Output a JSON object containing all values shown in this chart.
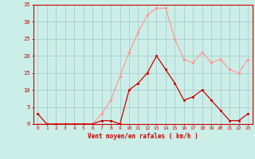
{
  "x": [
    0,
    1,
    2,
    3,
    4,
    5,
    6,
    7,
    8,
    9,
    10,
    11,
    12,
    13,
    14,
    15,
    16,
    17,
    18,
    19,
    20,
    21,
    22,
    23
  ],
  "wind_avg": [
    3,
    0,
    0,
    0,
    0,
    0,
    0,
    1,
    1,
    0,
    10,
    12,
    15,
    20,
    16,
    12,
    7,
    8,
    10,
    7,
    4,
    1,
    1,
    3
  ],
  "wind_gust": [
    0,
    0,
    0,
    0,
    0,
    0,
    0,
    3,
    7,
    14,
    21,
    27,
    32,
    34,
    34,
    25,
    19,
    18,
    21,
    18,
    19,
    16,
    15,
    19
  ],
  "background_color": "#cceee8",
  "grid_color": "#aacccc",
  "avg_color": "#cc0000",
  "gust_color": "#ff9999",
  "xlabel": "Vent moyen/en rafales ( km/h )",
  "xlabel_color": "#cc0000",
  "tick_color": "#cc0000",
  "ylim": [
    0,
    35
  ],
  "yticks": [
    0,
    5,
    10,
    15,
    20,
    25,
    30,
    35
  ],
  "xlim_min": -0.5,
  "xlim_max": 23.5
}
